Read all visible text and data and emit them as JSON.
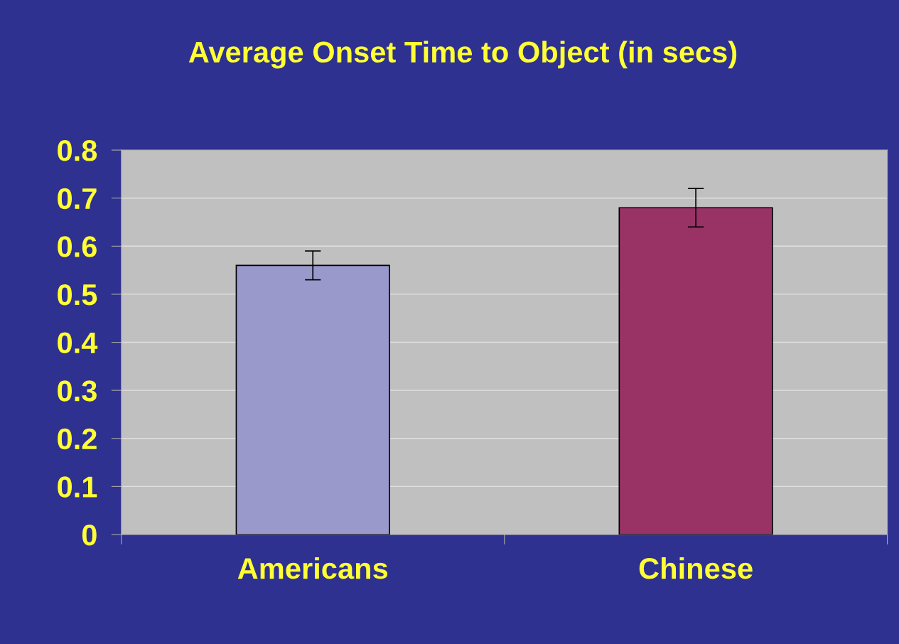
{
  "chart_data": {
    "type": "bar",
    "title": "Average Onset Time to Object (in secs)",
    "categories": [
      "Americans",
      "Chinese"
    ],
    "values": [
      0.56,
      0.68
    ],
    "colors": [
      "#9999cc",
      "#993366"
    ],
    "errors": [
      [
        0.53,
        0.59
      ],
      [
        0.64,
        0.72
      ]
    ],
    "ylim": [
      0,
      0.8
    ],
    "yticks": [
      0,
      0.1,
      0.2,
      0.3,
      0.4,
      0.5,
      0.6,
      0.7,
      0.8
    ],
    "grid": "y"
  }
}
